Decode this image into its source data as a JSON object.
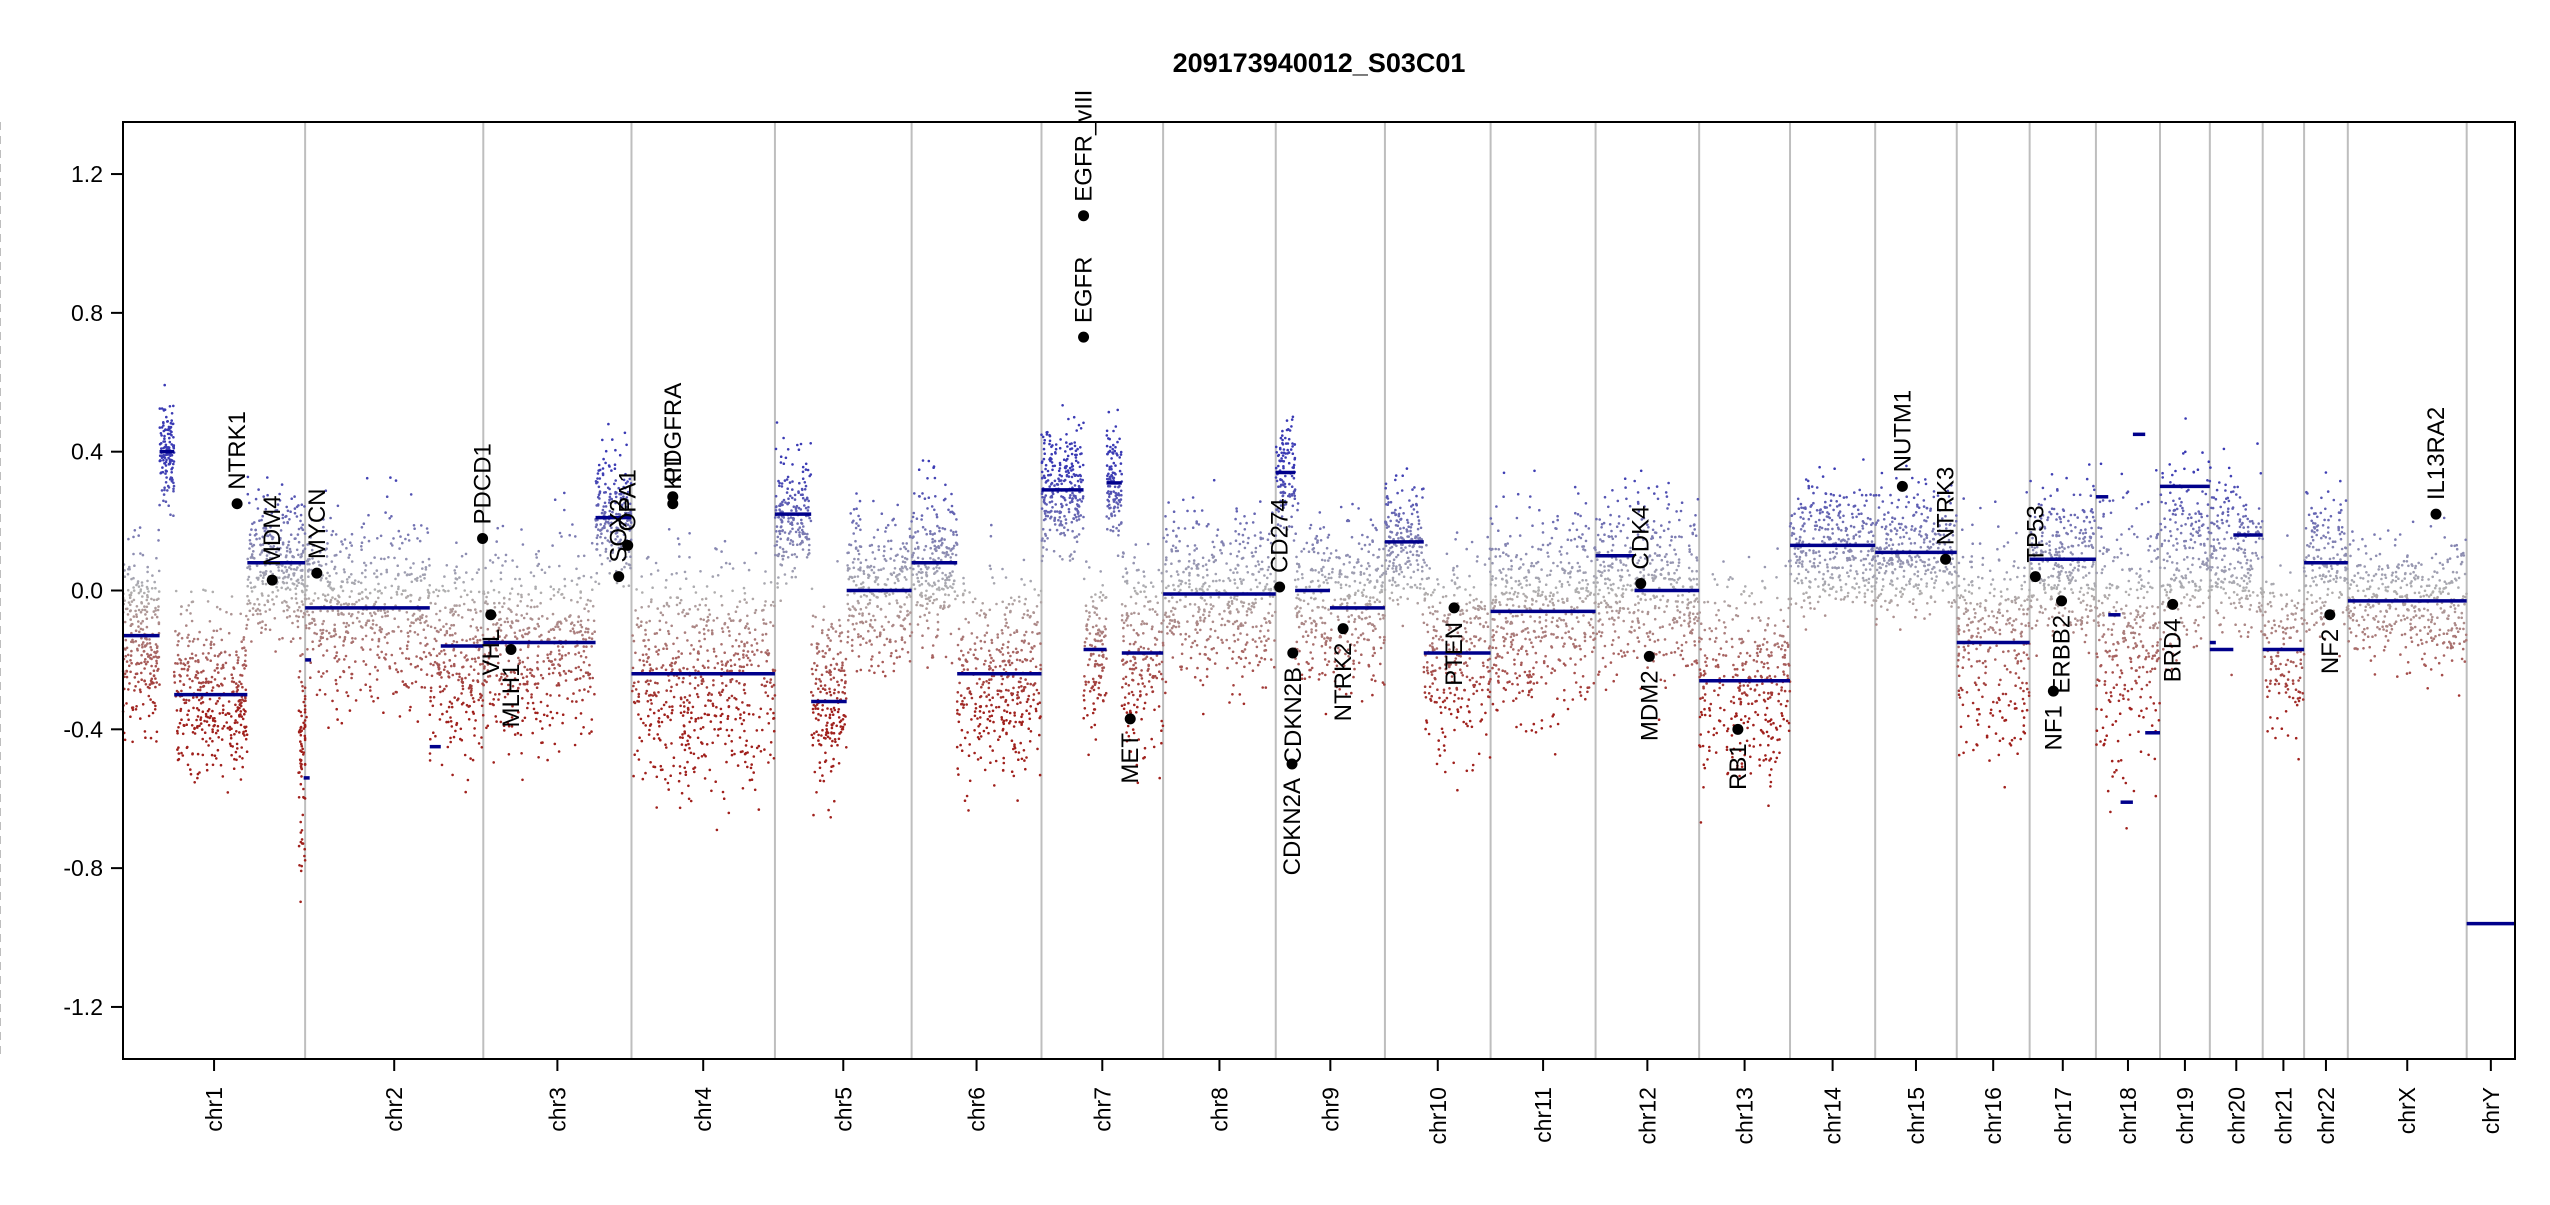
{
  "chart_data": {
    "type": "scatter",
    "title": "209173940012_S03C01",
    "xlabel": "",
    "ylabel": "",
    "ylim": [
      -1.35,
      1.35
    ],
    "y_ticks": [
      -1.2,
      -0.8,
      -0.4,
      0.0,
      0.4,
      0.8,
      1.2
    ],
    "y_tick_labels": [
      "-1.2",
      "-0.8",
      "-0.4",
      "0.0",
      "0.4",
      "0.8",
      "1.2"
    ],
    "grid": false,
    "colors": {
      "gain": "#3a3ab4",
      "loss": "#a0201c",
      "neutral": "#b0b0b0",
      "segment": "#00008b",
      "gene_point": "#000000",
      "chrom_border": "#bebebe",
      "centromere": "#bebebe"
    },
    "chromosomes": [
      {
        "name": "chr1",
        "length": 249,
        "centromere": 125
      },
      {
        "name": "chr2",
        "length": 243,
        "centromere": 93
      },
      {
        "name": "chr3",
        "length": 198,
        "centromere": 91
      },
      {
        "name": "chr4",
        "length": 191,
        "centromere": 50
      },
      {
        "name": "chr5",
        "length": 181,
        "centromere": 48
      },
      {
        "name": "chr6",
        "length": 171,
        "centromere": 60
      },
      {
        "name": "chr7",
        "length": 159,
        "centromere": 60
      },
      {
        "name": "chr8",
        "length": 146,
        "centromere": 45
      },
      {
        "name": "chr9",
        "length": 141,
        "centromere": 49
      },
      {
        "name": "chr10",
        "length": 136,
        "centromere": 40
      },
      {
        "name": "chr11",
        "length": 135,
        "centromere": 53
      },
      {
        "name": "chr12",
        "length": 133,
        "centromere": 35
      },
      {
        "name": "chr13",
        "length": 115,
        "centromere": 18
      },
      {
        "name": "chr14",
        "length": 107,
        "centromere": 17
      },
      {
        "name": "chr15",
        "length": 102,
        "centromere": 19
      },
      {
        "name": "chr16",
        "length": 90,
        "centromere": 36
      },
      {
        "name": "chr17",
        "length": 81,
        "centromere": 24
      },
      {
        "name": "chr18",
        "length": 78,
        "centromere": 17
      },
      {
        "name": "chr19",
        "length": 59,
        "centromere": 26
      },
      {
        "name": "chr20",
        "length": 63,
        "centromere": 28
      },
      {
        "name": "chr21",
        "length": 48,
        "centromere": 13
      },
      {
        "name": "chr22",
        "length": 51,
        "centromere": 14
      },
      {
        "name": "chrX",
        "length": 155,
        "centromere": 60
      },
      {
        "name": "chrY",
        "length": 57,
        "centromere": 10
      }
    ],
    "segments": [
      {
        "chr": "chr1",
        "start": 0,
        "end": 50,
        "value": -0.13
      },
      {
        "chr": "chr1",
        "start": 70,
        "end": 170,
        "value": -0.3
      },
      {
        "chr": "chr1",
        "start": 50,
        "end": 70,
        "value": 0.4
      },
      {
        "chr": "chr1",
        "start": 170,
        "end": 249,
        "value": 0.08
      },
      {
        "chr": "chr1",
        "start": 249,
        "end": 252,
        "value": -0.2
      },
      {
        "chr": "chr1",
        "start": 247,
        "end": 252,
        "value": -0.54
      },
      {
        "chr": "chr2",
        "start": 0,
        "end": 170,
        "value": -0.05
      },
      {
        "chr": "chr2",
        "start": 170,
        "end": 185,
        "value": -0.45
      },
      {
        "chr": "chr2",
        "start": 185,
        "end": 243,
        "value": -0.16
      },
      {
        "chr": "chr3",
        "start": 0,
        "end": 150,
        "value": -0.15
      },
      {
        "chr": "chr3",
        "start": 150,
        "end": 198,
        "value": 0.21
      },
      {
        "chr": "chr4",
        "start": 0,
        "end": 191,
        "value": -0.24
      },
      {
        "chr": "chr5",
        "start": 0,
        "end": 48,
        "value": 0.22
      },
      {
        "chr": "chr5",
        "start": 48,
        "end": 95,
        "value": -0.32
      },
      {
        "chr": "chr5",
        "start": 95,
        "end": 181,
        "value": 0.0
      },
      {
        "chr": "chr6",
        "start": 0,
        "end": 60,
        "value": 0.08
      },
      {
        "chr": "chr6",
        "start": 60,
        "end": 171,
        "value": -0.24
      },
      {
        "chr": "chr7",
        "start": 0,
        "end": 55,
        "value": 0.29
      },
      {
        "chr": "chr7",
        "start": 55,
        "end": 85,
        "value": -0.17
      },
      {
        "chr": "chr7",
        "start": 85,
        "end": 105,
        "value": 0.31
      },
      {
        "chr": "chr7",
        "start": 105,
        "end": 159,
        "value": -0.18
      },
      {
        "chr": "chr8",
        "start": 0,
        "end": 146,
        "value": -0.01
      },
      {
        "chr": "chr9",
        "start": 0,
        "end": 25,
        "value": 0.34
      },
      {
        "chr": "chr9",
        "start": 25,
        "end": 70,
        "value": 0.0
      },
      {
        "chr": "chr9",
        "start": 70,
        "end": 141,
        "value": -0.05
      },
      {
        "chr": "chr10",
        "start": 0,
        "end": 50,
        "value": 0.14
      },
      {
        "chr": "chr10",
        "start": 50,
        "end": 136,
        "value": -0.18
      },
      {
        "chr": "chr11",
        "start": 0,
        "end": 135,
        "value": -0.06
      },
      {
        "chr": "chr12",
        "start": 0,
        "end": 50,
        "value": 0.1
      },
      {
        "chr": "chr12",
        "start": 50,
        "end": 133,
        "value": 0.0
      },
      {
        "chr": "chr13",
        "start": 0,
        "end": 115,
        "value": -0.26
      },
      {
        "chr": "chr14",
        "start": 0,
        "end": 107,
        "value": 0.13
      },
      {
        "chr": "chr15",
        "start": 0,
        "end": 102,
        "value": 0.11
      },
      {
        "chr": "chr16",
        "start": 0,
        "end": 90,
        "value": -0.15
      },
      {
        "chr": "chr17",
        "start": 0,
        "end": 18,
        "value": 0.09
      },
      {
        "chr": "chr17",
        "start": 18,
        "end": 81,
        "value": 0.09
      },
      {
        "chr": "chr18",
        "start": 0,
        "end": 15,
        "value": 0.27
      },
      {
        "chr": "chr18",
        "start": 15,
        "end": 30,
        "value": -0.07
      },
      {
        "chr": "chr18",
        "start": 30,
        "end": 45,
        "value": -0.61
      },
      {
        "chr": "chr18",
        "start": 45,
        "end": 60,
        "value": 0.45
      },
      {
        "chr": "chr18",
        "start": 60,
        "end": 78,
        "value": -0.41
      },
      {
        "chr": "chr19",
        "start": 0,
        "end": 59,
        "value": 0.3
      },
      {
        "chr": "chr19",
        "start": 59,
        "end": 59,
        "value": -0.15
      },
      {
        "chr": "chr20",
        "start": 0,
        "end": 28,
        "value": -0.17
      },
      {
        "chr": "chr20",
        "start": 28,
        "end": 63,
        "value": 0.16
      },
      {
        "chr": "chr21",
        "start": 0,
        "end": 48,
        "value": -0.17
      },
      {
        "chr": "chr22",
        "start": 0,
        "end": 51,
        "value": 0.08
      },
      {
        "chr": "chrX",
        "start": 0,
        "end": 155,
        "value": -0.03
      },
      {
        "chr": "chrY",
        "start": 0,
        "end": 57,
        "value": -0.96
      }
    ],
    "genes": [
      {
        "name": "NTRK1",
        "chr": "chr1",
        "pos": 156,
        "value": 0.25
      },
      {
        "name": "MDM4",
        "chr": "chr1",
        "pos": 204,
        "value": 0.03
      },
      {
        "name": "MYCN",
        "chr": "chr2",
        "pos": 16,
        "value": 0.05
      },
      {
        "name": "PDCD1",
        "chr": "chr2",
        "pos": 242,
        "value": 0.15
      },
      {
        "name": "VHL",
        "chr": "chr3",
        "pos": 10,
        "value": -0.07
      },
      {
        "name": "MLH1",
        "chr": "chr3",
        "pos": 37,
        "value": -0.17
      },
      {
        "name": "SOX2",
        "chr": "chr3",
        "pos": 181,
        "value": 0.04
      },
      {
        "name": "OPA1",
        "chr": "chr3",
        "pos": 193,
        "value": 0.13
      },
      {
        "name": "KIT",
        "chr": "chr4",
        "pos": 55,
        "value": 0.25
      },
      {
        "name": "PDGFRA",
        "chr": "chr4",
        "pos": 55,
        "value": 0.27
      },
      {
        "name": "EGFR",
        "chr": "chr7",
        "pos": 55,
        "value": 0.73
      },
      {
        "name": "EGFR_vIII",
        "chr": "chr7",
        "pos": 55,
        "value": 1.08
      },
      {
        "name": "MET",
        "chr": "chr7",
        "pos": 116,
        "value": -0.37
      },
      {
        "name": "CD274",
        "chr": "chr9",
        "pos": 5,
        "value": 0.01
      },
      {
        "name": "CDKN2A",
        "chr": "chr9",
        "pos": 21,
        "value": -0.5
      },
      {
        "name": "CDKN2B",
        "chr": "chr9",
        "pos": 22,
        "value": -0.18
      },
      {
        "name": "NTRK2",
        "chr": "chr9",
        "pos": 87,
        "value": -0.11
      },
      {
        "name": "PTEN",
        "chr": "chr10",
        "pos": 89,
        "value": -0.05
      },
      {
        "name": "CDK4",
        "chr": "chr12",
        "pos": 58,
        "value": 0.02
      },
      {
        "name": "MDM2",
        "chr": "chr12",
        "pos": 69,
        "value": -0.19
      },
      {
        "name": "RB1",
        "chr": "chr13",
        "pos": 49,
        "value": -0.4
      },
      {
        "name": "NUTM1",
        "chr": "chr15",
        "pos": 34,
        "value": 0.3
      },
      {
        "name": "NTRK3",
        "chr": "chr15",
        "pos": 88,
        "value": 0.09
      },
      {
        "name": "TP53",
        "chr": "chr17",
        "pos": 7,
        "value": 0.04
      },
      {
        "name": "NF1",
        "chr": "chr17",
        "pos": 29,
        "value": -0.29
      },
      {
        "name": "ERBB2",
        "chr": "chr17",
        "pos": 39,
        "value": -0.03
      },
      {
        "name": "BRD4",
        "chr": "chr19",
        "pos": 15,
        "value": -0.04
      },
      {
        "name": "NF2",
        "chr": "chr22",
        "pos": 30,
        "value": -0.07
      },
      {
        "name": "IL13RA2",
        "chr": "chrX",
        "pos": 115,
        "value": 0.22
      }
    ],
    "point_clouds": [
      {
        "chr": "chr1",
        "start": 0,
        "end": 50,
        "center": -0.13,
        "spread": 0.22,
        "n": 260
      },
      {
        "chr": "chr1",
        "start": 50,
        "end": 70,
        "center": 0.4,
        "spread": 0.12,
        "n": 140
      },
      {
        "chr": "chr1",
        "start": 70,
        "end": 170,
        "center": -0.3,
        "spread": 0.2,
        "n": 380
      },
      {
        "chr": "chr1",
        "start": 170,
        "end": 249,
        "center": 0.08,
        "spread": 0.18,
        "n": 320
      },
      {
        "chr": "chr1",
        "start": 240,
        "end": 252,
        "center": -0.5,
        "spread": 0.25,
        "n": 80
      },
      {
        "chr": "chr2",
        "start": 0,
        "end": 170,
        "center": -0.05,
        "spread": 0.22,
        "n": 520
      },
      {
        "chr": "chr2",
        "start": 170,
        "end": 243,
        "center": -0.2,
        "spread": 0.25,
        "n": 260
      },
      {
        "chr": "chr3",
        "start": 0,
        "end": 150,
        "center": -0.15,
        "spread": 0.25,
        "n": 460
      },
      {
        "chr": "chr3",
        "start": 150,
        "end": 198,
        "center": 0.21,
        "spread": 0.15,
        "n": 220
      },
      {
        "chr": "chr4",
        "start": 0,
        "end": 191,
        "center": -0.24,
        "spread": 0.28,
        "n": 620
      },
      {
        "chr": "chr5",
        "start": 0,
        "end": 48,
        "center": 0.22,
        "spread": 0.15,
        "n": 200
      },
      {
        "chr": "chr5",
        "start": 48,
        "end": 95,
        "center": -0.32,
        "spread": 0.22,
        "n": 200
      },
      {
        "chr": "chr5",
        "start": 95,
        "end": 181,
        "center": 0.0,
        "spread": 0.2,
        "n": 300
      },
      {
        "chr": "chr6",
        "start": 0,
        "end": 60,
        "center": 0.08,
        "spread": 0.2,
        "n": 240
      },
      {
        "chr": "chr6",
        "start": 60,
        "end": 171,
        "center": -0.24,
        "spread": 0.25,
        "n": 400
      },
      {
        "chr": "chr7",
        "start": 0,
        "end": 55,
        "center": 0.29,
        "spread": 0.15,
        "n": 280
      },
      {
        "chr": "chr7",
        "start": 55,
        "end": 85,
        "center": -0.17,
        "spread": 0.2,
        "n": 120
      },
      {
        "chr": "chr7",
        "start": 85,
        "end": 105,
        "center": 0.31,
        "spread": 0.15,
        "n": 120
      },
      {
        "chr": "chr7",
        "start": 105,
        "end": 159,
        "center": -0.18,
        "spread": 0.25,
        "n": 200
      },
      {
        "chr": "chr8",
        "start": 0,
        "end": 146,
        "center": -0.01,
        "spread": 0.2,
        "n": 460
      },
      {
        "chr": "chr9",
        "start": 0,
        "end": 25,
        "center": 0.34,
        "spread": 0.15,
        "n": 120
      },
      {
        "chr": "chr9",
        "start": 25,
        "end": 141,
        "center": -0.03,
        "spread": 0.22,
        "n": 380
      },
      {
        "chr": "chr10",
        "start": 0,
        "end": 50,
        "center": 0.14,
        "spread": 0.15,
        "n": 200
      },
      {
        "chr": "chr10",
        "start": 50,
        "end": 136,
        "center": -0.18,
        "spread": 0.25,
        "n": 300
      },
      {
        "chr": "chr11",
        "start": 0,
        "end": 135,
        "center": -0.06,
        "spread": 0.25,
        "n": 500
      },
      {
        "chr": "chr12",
        "start": 0,
        "end": 133,
        "center": 0.03,
        "spread": 0.22,
        "n": 460
      },
      {
        "chr": "chr13",
        "start": 0,
        "end": 115,
        "center": -0.26,
        "spread": 0.25,
        "n": 360
      },
      {
        "chr": "chr14",
        "start": 0,
        "end": 107,
        "center": 0.13,
        "spread": 0.15,
        "n": 360
      },
      {
        "chr": "chr15",
        "start": 0,
        "end": 102,
        "center": 0.11,
        "spread": 0.15,
        "n": 340
      },
      {
        "chr": "chr16",
        "start": 0,
        "end": 90,
        "center": -0.15,
        "spread": 0.25,
        "n": 300
      },
      {
        "chr": "chr17",
        "start": 0,
        "end": 81,
        "center": 0.09,
        "spread": 0.18,
        "n": 320
      },
      {
        "chr": "chr18",
        "start": 0,
        "end": 78,
        "center": -0.1,
        "spread": 0.35,
        "n": 300
      },
      {
        "chr": "chr19",
        "start": 0,
        "end": 59,
        "center": 0.1,
        "spread": 0.25,
        "n": 220
      },
      {
        "chr": "chr20",
        "start": 0,
        "end": 63,
        "center": 0.1,
        "spread": 0.18,
        "n": 240
      },
      {
        "chr": "chr21",
        "start": 0,
        "end": 48,
        "center": -0.17,
        "spread": 0.2,
        "n": 140
      },
      {
        "chr": "chr22",
        "start": 0,
        "end": 51,
        "center": 0.08,
        "spread": 0.18,
        "n": 180
      },
      {
        "chr": "chrX",
        "start": 0,
        "end": 155,
        "center": -0.03,
        "spread": 0.15,
        "n": 420
      }
    ]
  }
}
